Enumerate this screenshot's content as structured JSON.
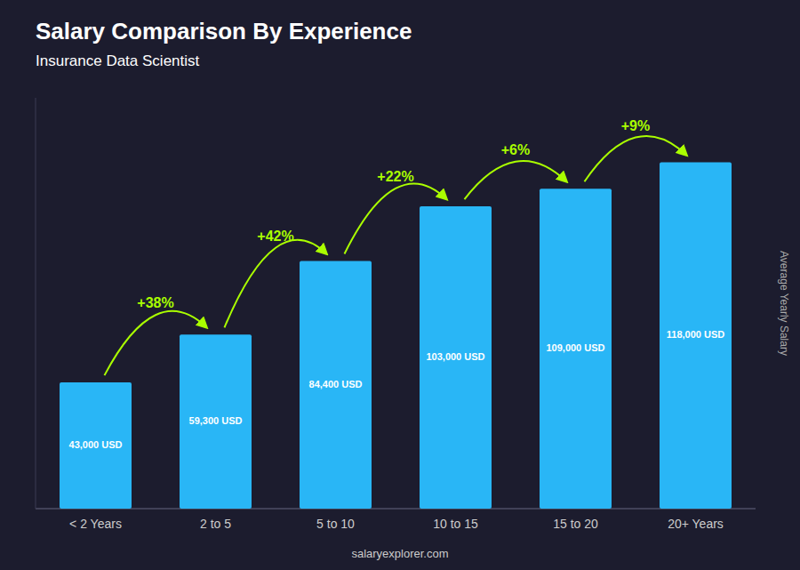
{
  "chart_data": {
    "type": "bar",
    "title": "Salary Comparison By Experience",
    "subtitle": "Insurance Data Scientist",
    "ylabel": "Average Yearly Salary",
    "footer": "salaryexplorer.com",
    "categories": [
      "< 2 Years",
      "2 to 5",
      "5 to 10",
      "10 to 15",
      "15 to 20",
      "20+ Years"
    ],
    "values": [
      43000,
      59300,
      84400,
      103000,
      109000,
      118000
    ],
    "value_labels": [
      "43,000 USD",
      "59,300 USD",
      "84,400 USD",
      "103,000 USD",
      "109,000 USD",
      "118,000 USD"
    ],
    "data_labels": true,
    "color": "#29b6f6",
    "annotations": [
      {
        "text": "+38%",
        "color": "#aaff00"
      },
      {
        "text": "+42%",
        "color": "#aaff00"
      },
      {
        "text": "+22%",
        "color": "#aaff00"
      },
      {
        "text": "+6%",
        "color": "#aaff00"
      },
      {
        "text": "+9%",
        "color": "#aaff00"
      }
    ],
    "ylim": [
      0,
      140000
    ],
    "tick_labels": "x",
    "grid": false
  }
}
